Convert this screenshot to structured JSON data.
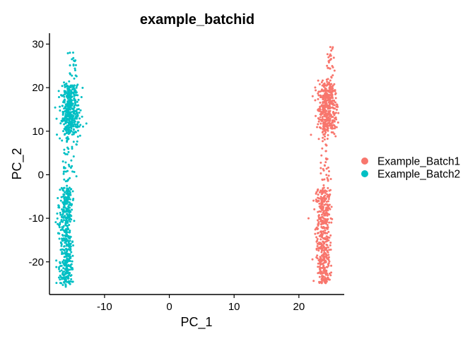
{
  "chart_data": {
    "type": "scatter",
    "title": "example_batchid",
    "xlabel": "PC_1",
    "ylabel": "PC_2",
    "xlim": [
      -18.5,
      27
    ],
    "ylim": [
      -27.5,
      32.5
    ],
    "xticks": [
      -10,
      0,
      10,
      20
    ],
    "xtick_labels": [
      "-10",
      "0",
      "10",
      "20"
    ],
    "yticks": [
      -20,
      -10,
      0,
      10,
      20,
      30
    ],
    "ytick_labels": [
      "-20",
      "-10",
      "0",
      "10",
      "20",
      "30"
    ],
    "grid": false,
    "legend_position": "right",
    "series": [
      {
        "name": "Example_Batch1",
        "color": "#F8766D",
        "x_center": 24.0,
        "x_spread": 0.55,
        "y_range": [
          -25,
          29.5
        ],
        "dense_y_range": [
          10,
          20
        ],
        "dense_x_center": 24.5,
        "marker": "circle"
      },
      {
        "name": "Example_Batch2",
        "color": "#00BFC4",
        "x_center": -15.7,
        "x_spread": 0.55,
        "y_range": [
          -26,
          28.5
        ],
        "dense_y_range": [
          10,
          20
        ],
        "dense_x_center": -15.3,
        "marker": "circle"
      }
    ]
  }
}
